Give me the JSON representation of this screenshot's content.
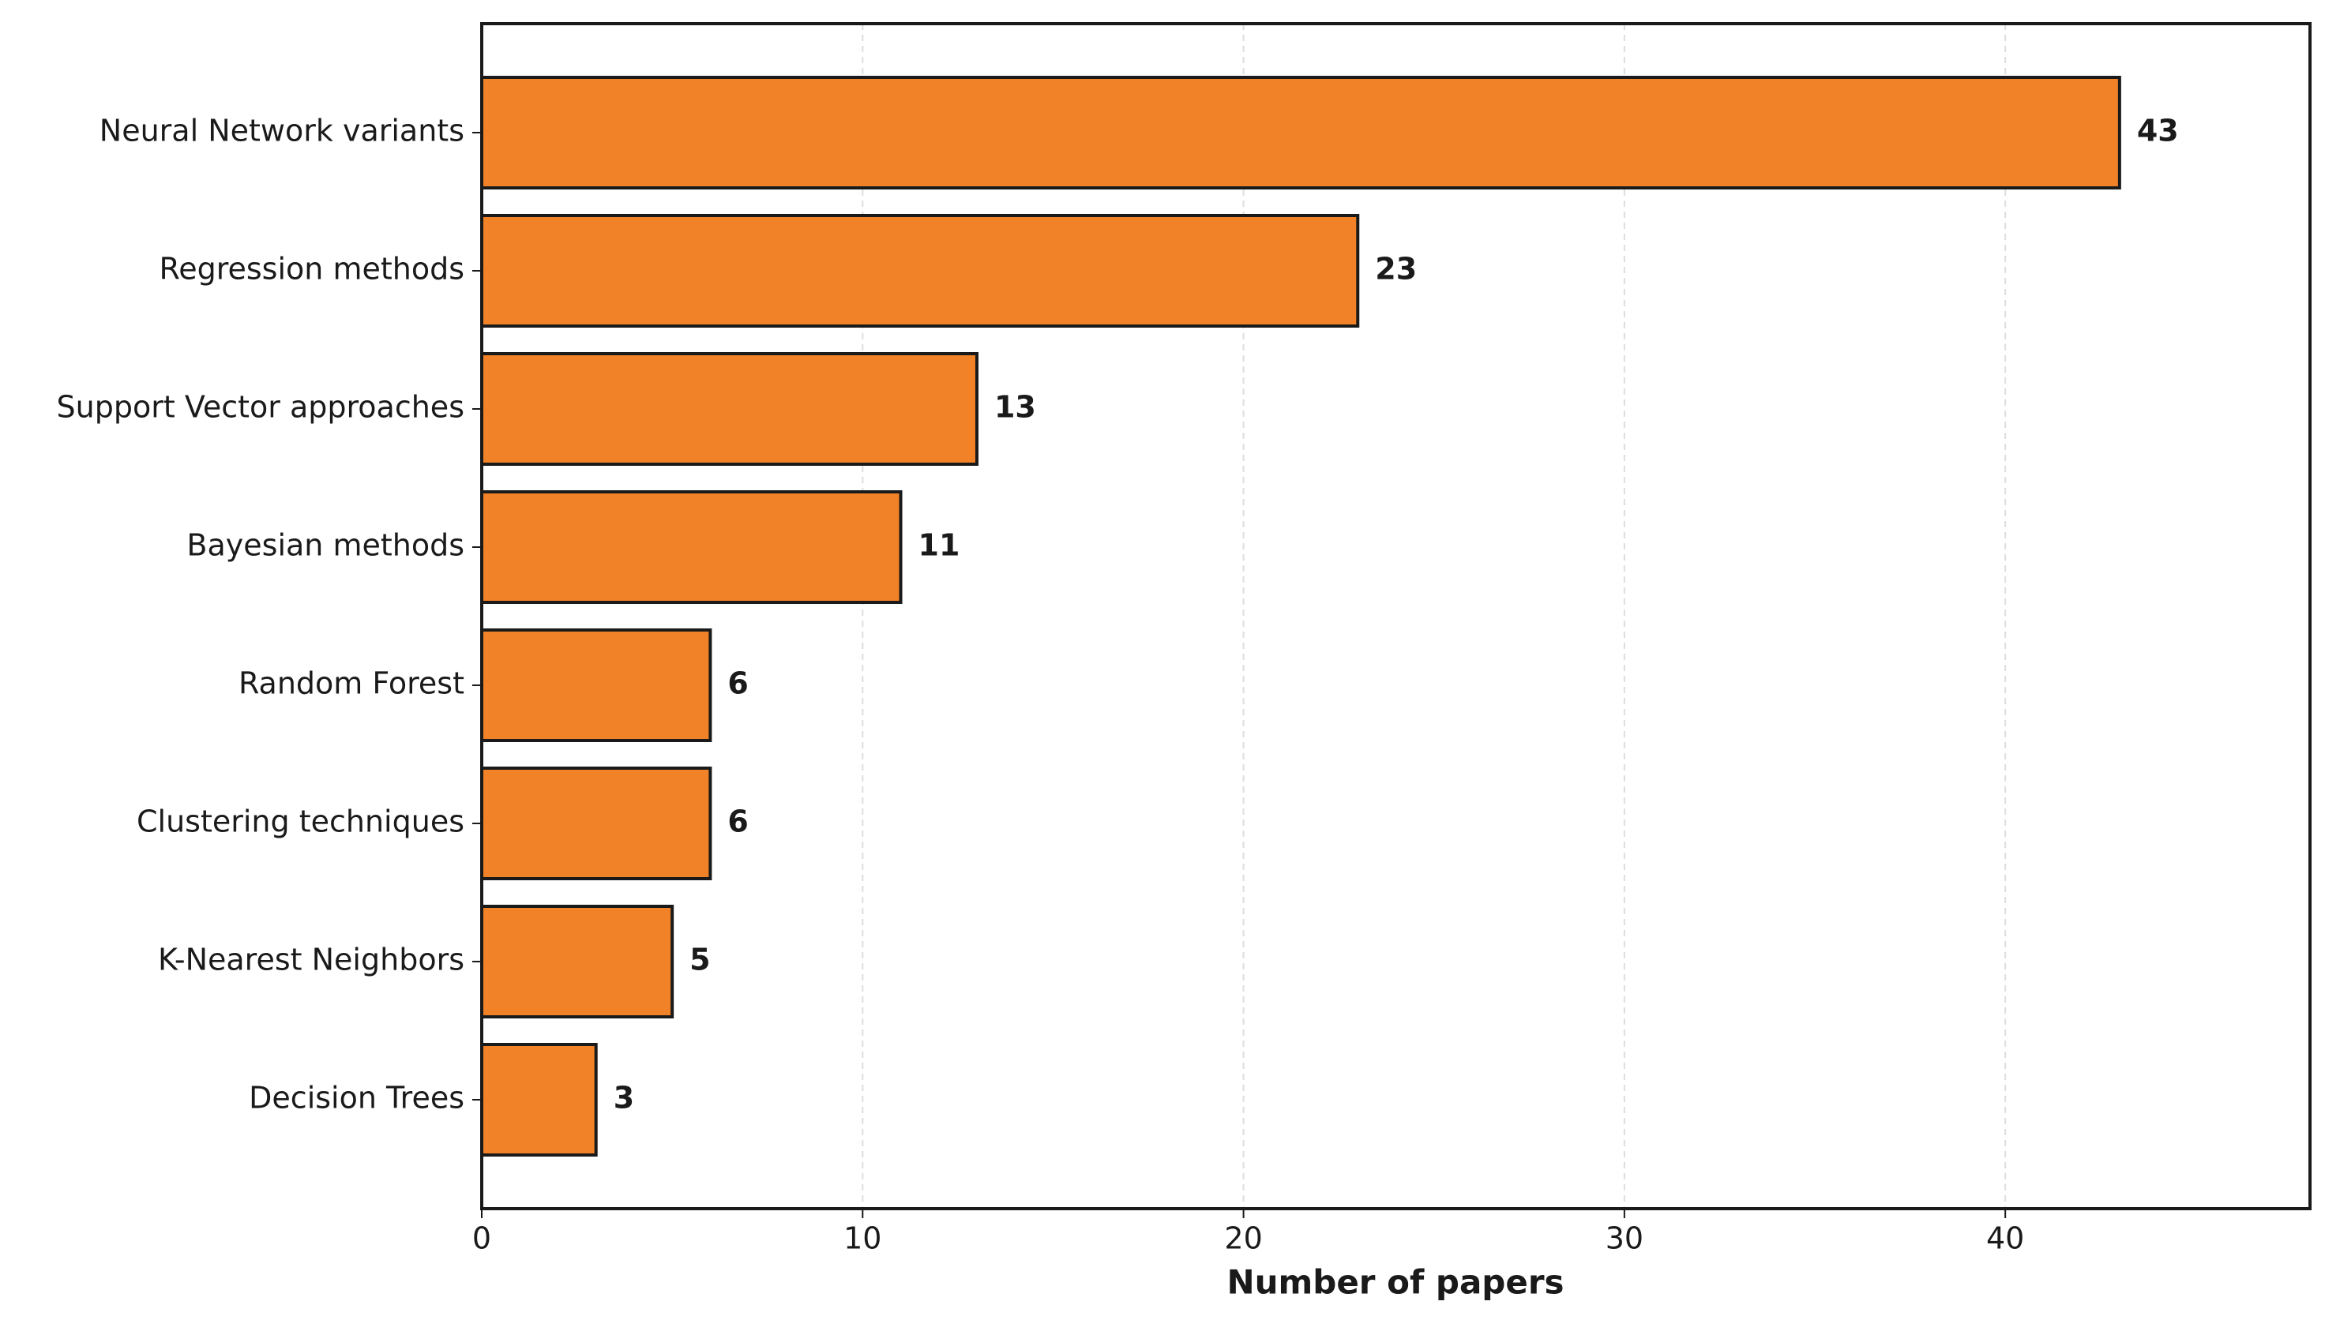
{
  "chart_data": {
    "type": "barh",
    "xlabel": "Number of papers",
    "categories": [
      "Neural Network variants",
      "Regression methods",
      "Support Vector approaches",
      "Bayesian methods",
      "Random Forest",
      "Clustering techniques",
      "K-Nearest Neighbors",
      "Decision Trees"
    ],
    "values": [
      43,
      23,
      13,
      11,
      6,
      6,
      5,
      3
    ],
    "color": "#f28227",
    "xlim": [
      0,
      48
    ],
    "xticks": [
      0,
      10,
      20,
      30,
      40
    ],
    "grid": true
  }
}
